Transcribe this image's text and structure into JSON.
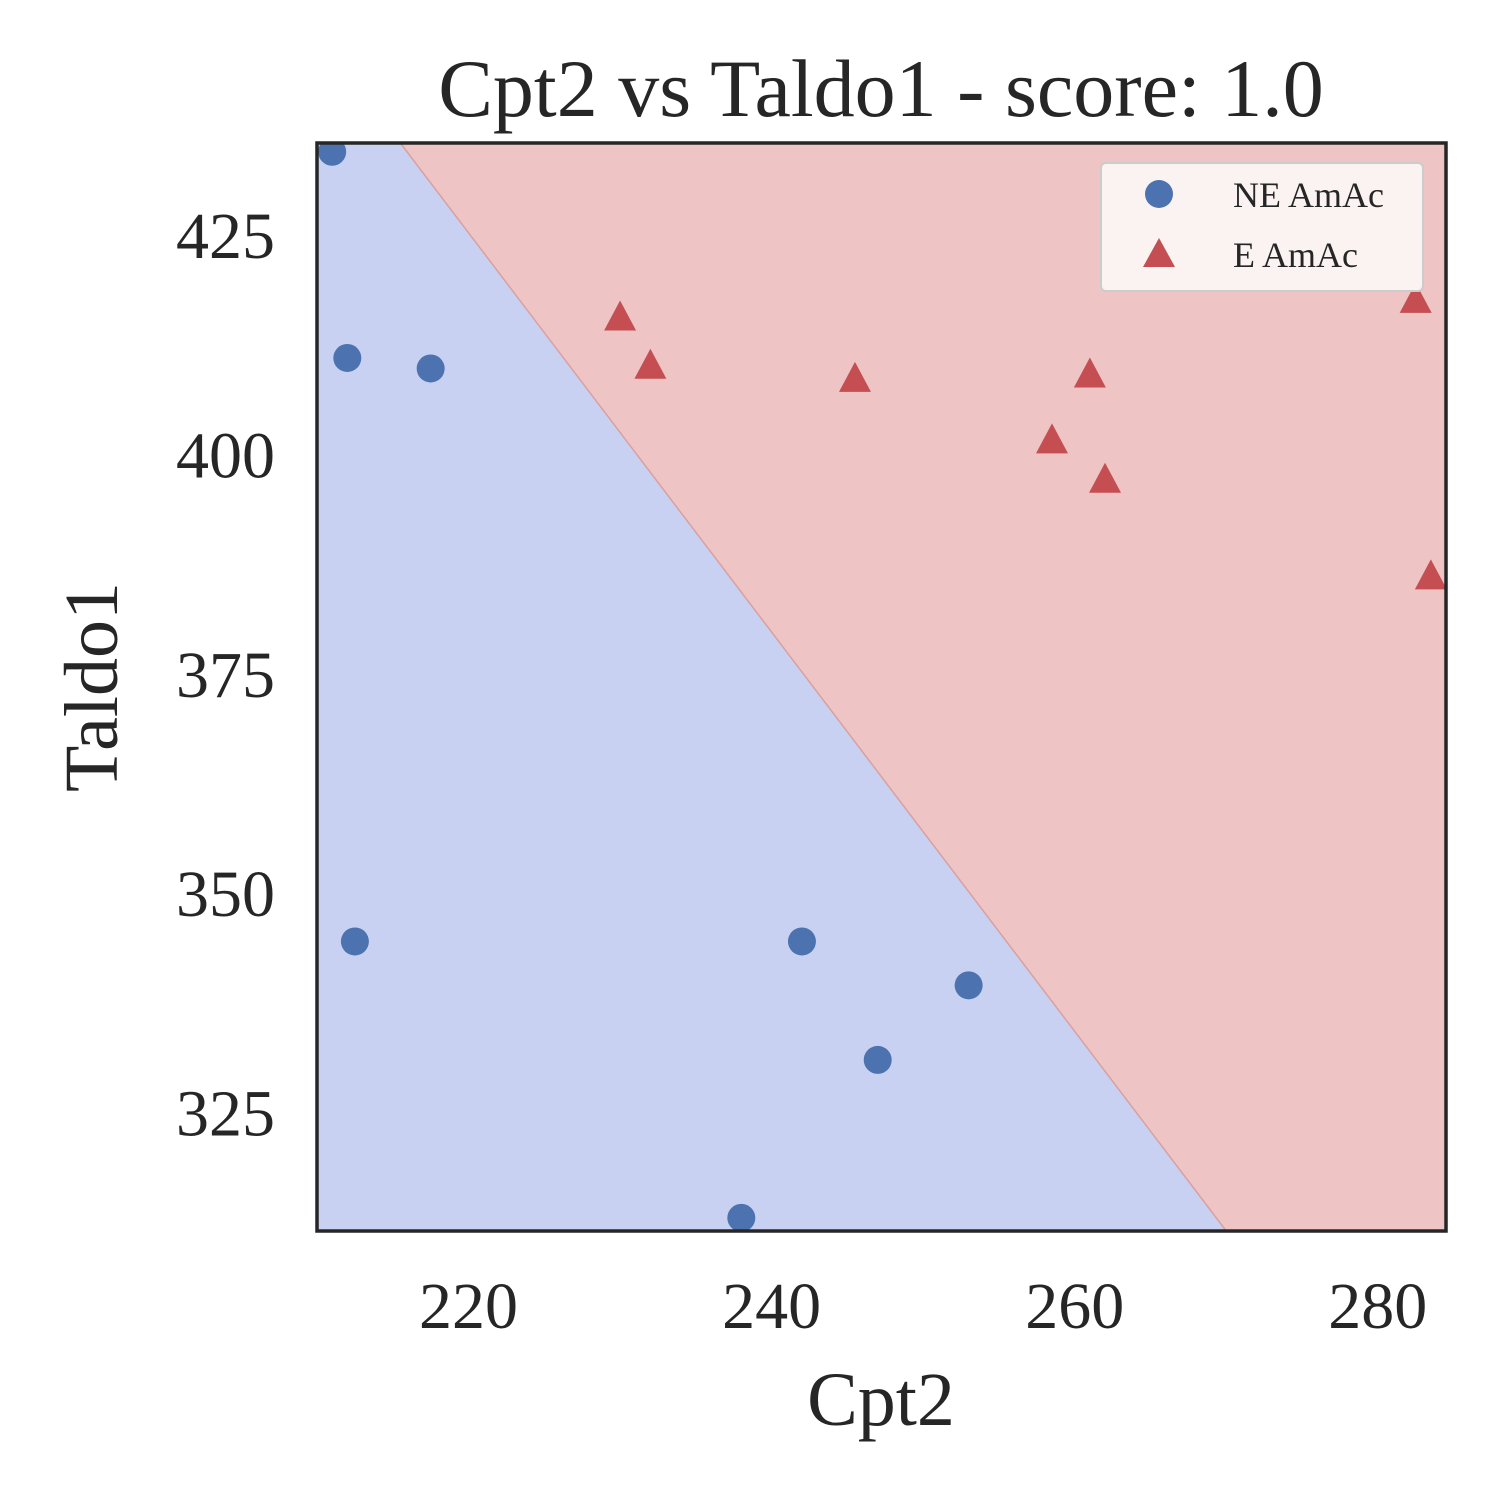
{
  "chart_data": {
    "type": "scatter",
    "title": "Cpt2 vs Taldo1 - score: 1.0",
    "xlabel": "Cpt2",
    "ylabel": "Taldo1",
    "xlim": [
      210,
      284.5
    ],
    "ylim": [
      311.5,
      435.5
    ],
    "xticks": [
      220,
      240,
      260,
      280
    ],
    "yticks": [
      325,
      350,
      375,
      400,
      425
    ],
    "grid": false,
    "legend_position": "top-right",
    "decision_boundary": {
      "class_below": "NE AmAc",
      "class_above": "E AmAc",
      "points": [
        [
          215.5,
          435.5
        ],
        [
          270.0,
          311.5
        ]
      ]
    },
    "colors": {
      "region_ne": "#c8d1f1",
      "region_e": "#eec4c4",
      "boundary": "#d9a0a0",
      "ne_marker": "#4c72b0",
      "e_marker": "#c44e52",
      "frame": "#262626"
    },
    "series": [
      {
        "name": "NE AmAc",
        "marker": "circle",
        "points": [
          [
            211.0,
            434.5
          ],
          [
            212.0,
            411.0
          ],
          [
            217.5,
            409.8
          ],
          [
            212.5,
            344.5
          ],
          [
            238.0,
            313.0
          ],
          [
            242.0,
            344.5
          ],
          [
            247.0,
            331.0
          ],
          [
            253.0,
            339.5
          ]
        ]
      },
      {
        "name": "E AmAc",
        "marker": "triangle",
        "points": [
          [
            230.0,
            415.5
          ],
          [
            232.0,
            410.0
          ],
          [
            245.5,
            408.5
          ],
          [
            258.5,
            401.5
          ],
          [
            261.0,
            409.0
          ],
          [
            262.0,
            397.0
          ],
          [
            282.5,
            417.5
          ],
          [
            283.5,
            386.0
          ]
        ]
      }
    ]
  }
}
